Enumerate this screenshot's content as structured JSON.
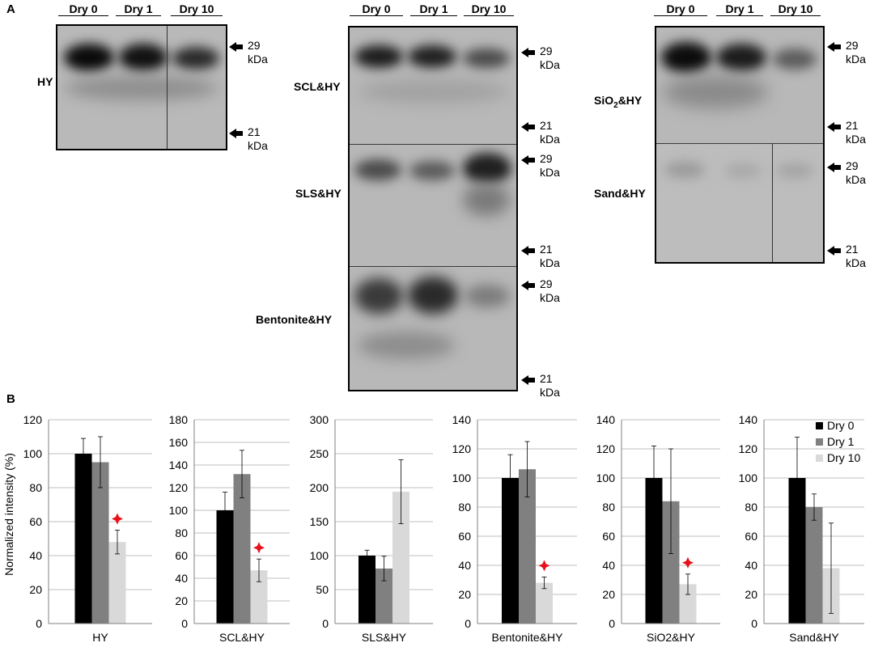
{
  "panel_a": {
    "letter": "A",
    "lane_labels": [
      "Dry 0",
      "Dry 1",
      "Dry 10"
    ],
    "marker_num_29": "29",
    "marker_num_21": "21",
    "marker_unit": "kDa",
    "samples": {
      "hy": "HY",
      "scl": "SCL&HY",
      "sls": "SLS&HY",
      "bentonite": "Bentonite&HY",
      "sio2_prefix": "SiO",
      "sio2_sub": "2",
      "sio2_suffix": "&HY",
      "sand": "Sand&HY"
    }
  },
  "panel_b": {
    "letter": "B",
    "ylabel": "Normalized intensity (%)",
    "legend": [
      "Dry 0",
      "Dry 1",
      "Dry 10"
    ],
    "colors": {
      "dry0": "#000000",
      "dry1": "#808080",
      "dry10": "#d9d9d9",
      "star": "#e8101a",
      "grid": "#bfbfbf"
    }
  },
  "chart_data": [
    {
      "type": "bar",
      "title": "HY",
      "series_labels": [
        "Dry 0",
        "Dry 1",
        "Dry 10"
      ],
      "values": [
        100,
        95,
        48
      ],
      "errors": [
        9,
        15,
        7
      ],
      "significant": [
        false,
        false,
        true
      ],
      "ylim": [
        0,
        120
      ],
      "yticks": [
        0,
        20,
        40,
        60,
        80,
        100,
        120
      ]
    },
    {
      "type": "bar",
      "title": "SCL&HY",
      "series_labels": [
        "Dry 0",
        "Dry 1",
        "Dry 10"
      ],
      "values": [
        100,
        132,
        47
      ],
      "errors": [
        16,
        21,
        10
      ],
      "significant": [
        false,
        false,
        true
      ],
      "ylim": [
        0,
        180
      ],
      "yticks": [
        0,
        20,
        40,
        60,
        80,
        100,
        120,
        140,
        160,
        180
      ]
    },
    {
      "type": "bar",
      "title": "SLS&HY",
      "series_labels": [
        "Dry 0",
        "Dry 1",
        "Dry 10"
      ],
      "values": [
        100,
        81,
        194
      ],
      "errors": [
        8,
        18,
        47
      ],
      "significant": [
        false,
        false,
        false
      ],
      "ylim": [
        0,
        300
      ],
      "yticks": [
        0,
        50,
        100,
        150,
        200,
        250,
        300
      ]
    },
    {
      "type": "bar",
      "title": "Bentonite&HY",
      "series_labels": [
        "Dry 0",
        "Dry 1",
        "Dry 10"
      ],
      "values": [
        100,
        106,
        28
      ],
      "errors": [
        16,
        19,
        4
      ],
      "significant": [
        false,
        false,
        true
      ],
      "ylim": [
        0,
        140
      ],
      "yticks": [
        0,
        20,
        40,
        60,
        80,
        100,
        120,
        140
      ]
    },
    {
      "type": "bar",
      "title": "SiO2&HY",
      "series_labels": [
        "Dry 0",
        "Dry 1",
        "Dry 10"
      ],
      "values": [
        100,
        84,
        27
      ],
      "errors": [
        22,
        36,
        7
      ],
      "significant": [
        false,
        false,
        true
      ],
      "ylim": [
        0,
        140
      ],
      "yticks": [
        0,
        20,
        40,
        60,
        80,
        100,
        120,
        140
      ]
    },
    {
      "type": "bar",
      "title": "Sand&HY",
      "series_labels": [
        "Dry 0",
        "Dry 1",
        "Dry 10"
      ],
      "values": [
        100,
        80,
        38
      ],
      "errors": [
        28,
        9,
        31
      ],
      "significant": [
        false,
        false,
        false
      ],
      "ylim": [
        0,
        140
      ],
      "yticks": [
        0,
        20,
        40,
        60,
        80,
        100,
        120,
        140
      ],
      "legend": "top-right"
    }
  ]
}
